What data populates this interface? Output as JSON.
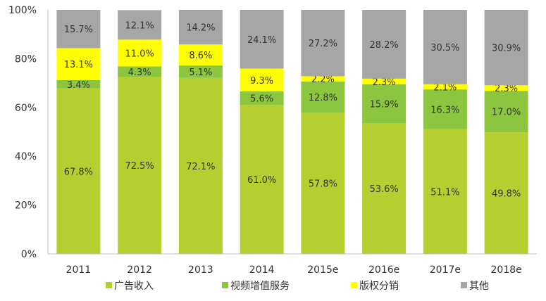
{
  "chart_data": {
    "type": "bar",
    "stacked": true,
    "percent": true,
    "categories": [
      "2011",
      "2012",
      "2013",
      "2014",
      "2015e",
      "2016e",
      "2017e",
      "2018e"
    ],
    "series": [
      {
        "name": "广告收入",
        "color": "#b5cf31",
        "values": [
          67.8,
          72.5,
          72.1,
          61.0,
          57.8,
          53.6,
          51.1,
          49.8
        ],
        "labels": [
          "67.8%",
          "72.5%",
          "72.1%",
          "61.0%",
          "57.8%",
          "53.6%",
          "51.1%",
          "49.8%"
        ]
      },
      {
        "name": "视频增值服务",
        "color": "#8cc63f",
        "values": [
          3.4,
          4.3,
          5.1,
          5.6,
          12.8,
          15.9,
          16.3,
          17.0
        ],
        "labels": [
          "3.4%",
          "4.3%",
          "5.1%",
          "5.6%",
          "12.8%",
          "15.9%",
          "16.3%",
          "17.0%"
        ]
      },
      {
        "name": "版权分销",
        "color": "#ffff00",
        "values": [
          13.1,
          11.0,
          8.6,
          9.3,
          2.2,
          2.3,
          2.1,
          2.3
        ],
        "labels": [
          "13.1%",
          "11.0%",
          "8.6%",
          "9.3%",
          "2.2%",
          "2.3%",
          "2.1%",
          "2.3%"
        ]
      },
      {
        "name": "其他",
        "color": "#a6a6a6",
        "values": [
          15.7,
          12.1,
          14.2,
          24.1,
          27.2,
          28.2,
          30.5,
          30.9
        ],
        "labels": [
          "15.7%",
          "12.1%",
          "14.2%",
          "24.1%",
          "27.2%",
          "28.2%",
          "30.5%",
          "30.9%"
        ]
      }
    ],
    "y_ticks": [
      "0%",
      "20%",
      "40%",
      "60%",
      "80%",
      "100%"
    ],
    "ylim": [
      0,
      100
    ],
    "grid": false,
    "legend_position": "bottom",
    "title": "",
    "xlabel": "",
    "ylabel": ""
  }
}
